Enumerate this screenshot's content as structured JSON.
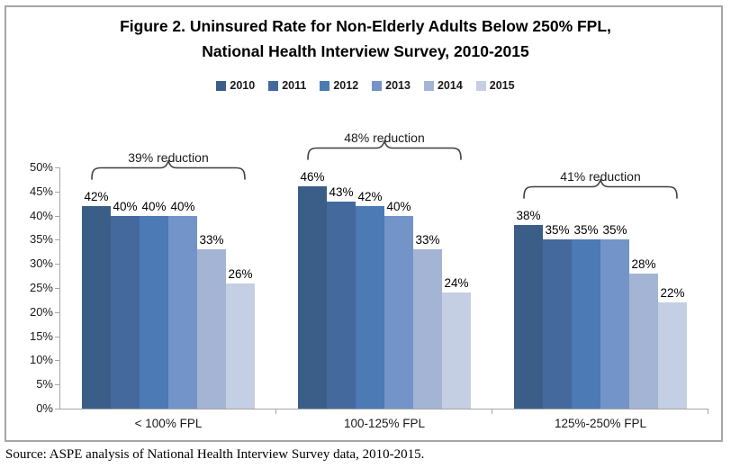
{
  "figure": {
    "title_line1": "Figure 2. Uninsured Rate for Non-Elderly Adults Below 250% FPL,",
    "title_line2": "National Health Interview Survey, 2010-2015",
    "source_note": "Source: ASPE analysis of National Health Interview Survey data, 2010-2015."
  },
  "chart_data": {
    "type": "bar",
    "title": "Figure 2. Uninsured Rate for Non-Elderly Adults Below 250% FPL, National Health Interview Survey, 2010-2015",
    "categories": [
      "< 100% FPL",
      "100-125% FPL",
      "125%-250% FPL"
    ],
    "series": [
      {
        "name": "2010",
        "color": "#3A5E88",
        "values": [
          42,
          46,
          38
        ]
      },
      {
        "name": "2011",
        "color": "#44699C",
        "values": [
          40,
          43,
          35
        ]
      },
      {
        "name": "2012",
        "color": "#4B7AB5",
        "values": [
          40,
          42,
          35
        ]
      },
      {
        "name": "2013",
        "color": "#7394C8",
        "values": [
          40,
          40,
          35
        ]
      },
      {
        "name": "2014",
        "color": "#A3B4D5",
        "values": [
          33,
          33,
          28
        ]
      },
      {
        "name": "2015",
        "color": "#C5CFE3",
        "values": [
          26,
          24,
          22
        ]
      }
    ],
    "value_suffix": "%",
    "value_labels": true,
    "annotations": [
      "39% reduction",
      "48% reduction",
      "41% reduction"
    ],
    "yticks": [
      "0%",
      "5%",
      "10%",
      "15%",
      "20%",
      "25%",
      "30%",
      "35%",
      "40%",
      "45%",
      "50%"
    ],
    "ylim": [
      0,
      50
    ],
    "grid": false,
    "legend_position": "top-center",
    "axis_color": "#A6A6A6",
    "brace_color": "#3F3F3F"
  }
}
